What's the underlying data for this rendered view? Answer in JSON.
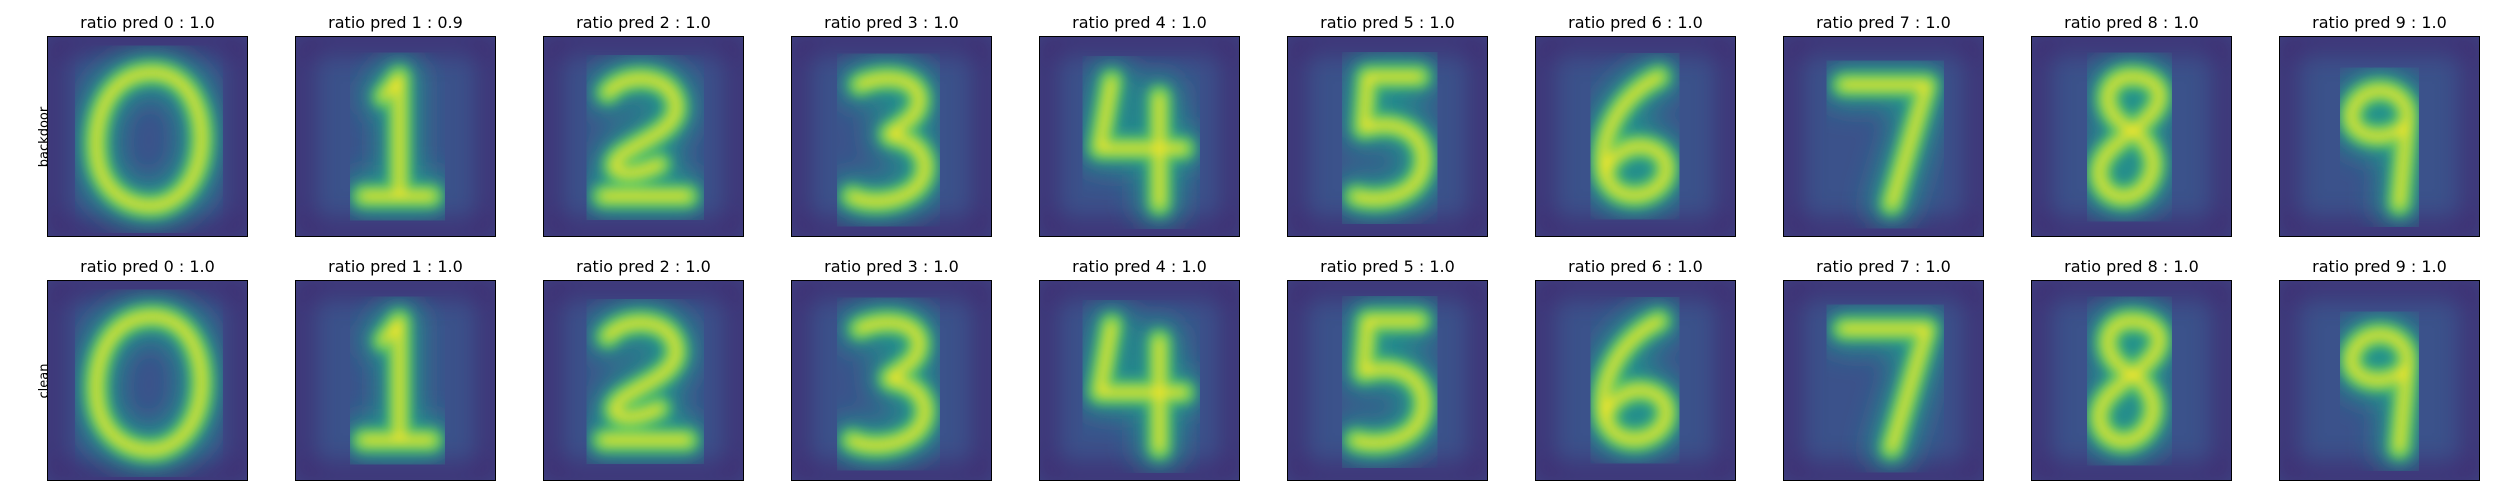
{
  "rows": [
    {
      "label": "backdoor",
      "panels": [
        {
          "title": "ratio pred 0 :  1.0",
          "digit": "0"
        },
        {
          "title": "ratio pred 1 :  0.9",
          "digit": "1"
        },
        {
          "title": "ratio pred 2 :  1.0",
          "digit": "2"
        },
        {
          "title": "ratio pred 3 :  1.0",
          "digit": "3"
        },
        {
          "title": "ratio pred 4 :  1.0",
          "digit": "4"
        },
        {
          "title": "ratio pred 5 :  1.0",
          "digit": "5"
        },
        {
          "title": "ratio pred 6 :  1.0",
          "digit": "6"
        },
        {
          "title": "ratio pred 7 :  1.0",
          "digit": "7"
        },
        {
          "title": "ratio pred 8 :  1.0",
          "digit": "8"
        },
        {
          "title": "ratio pred 9 :  1.0",
          "digit": "9"
        }
      ]
    },
    {
      "label": "clean",
      "panels": [
        {
          "title": "ratio pred 0 :  1.0",
          "digit": "0"
        },
        {
          "title": "ratio pred 1 :  1.0",
          "digit": "1"
        },
        {
          "title": "ratio pred 2 :  1.0",
          "digit": "2"
        },
        {
          "title": "ratio pred 3 :  1.0",
          "digit": "3"
        },
        {
          "title": "ratio pred 4 :  1.0",
          "digit": "4"
        },
        {
          "title": "ratio pred 5 :  1.0",
          "digit": "5"
        },
        {
          "title": "ratio pred 6 :  1.0",
          "digit": "6"
        },
        {
          "title": "ratio pred 7 :  1.0",
          "digit": "7"
        },
        {
          "title": "ratio pred 8 :  1.0",
          "digit": "8"
        },
        {
          "title": "ratio pred 9 :  1.0",
          "digit": "9"
        }
      ]
    }
  ],
  "colormap": {
    "background": "#3b528b",
    "dark": "#440154",
    "mid": "#21918c",
    "light": "#5ec962",
    "bright": "#fde725"
  }
}
